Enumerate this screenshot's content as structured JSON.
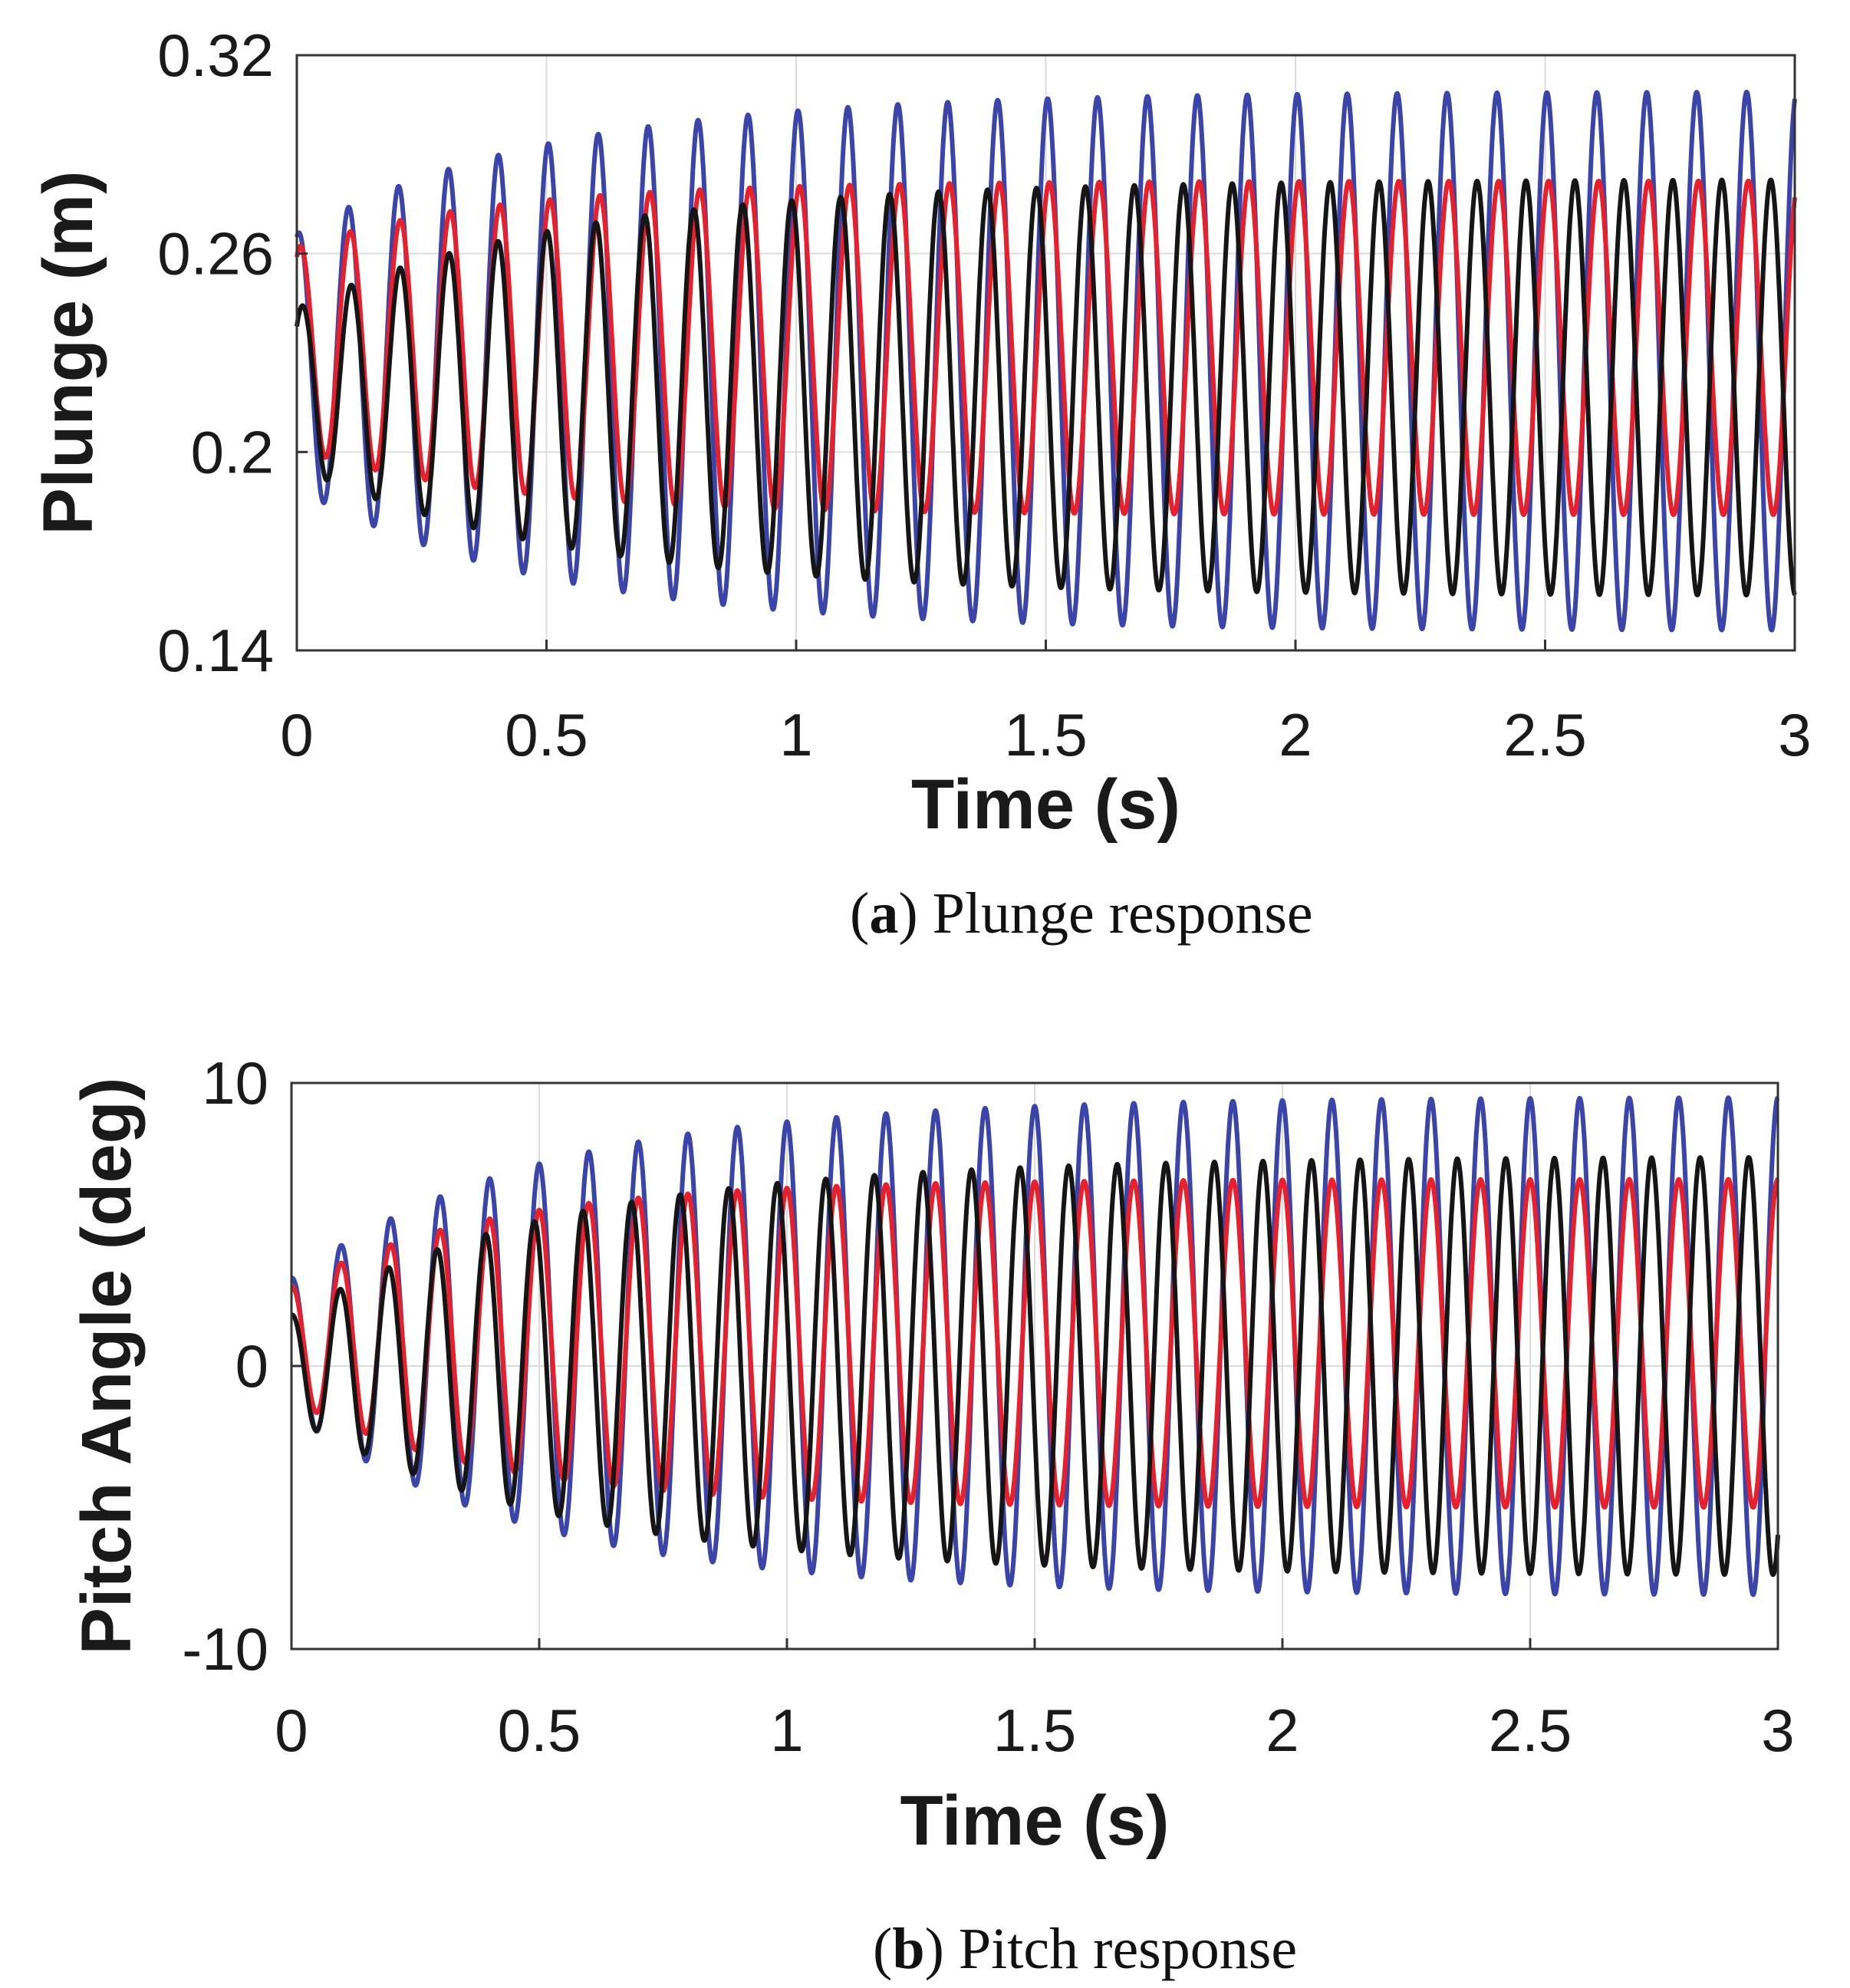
{
  "charts": [
    {
      "type": "line",
      "ylabel": "Plunge (m)",
      "xlabel": "Time (s)",
      "xlim": [
        0,
        3
      ],
      "ylim": [
        0.14,
        0.32
      ],
      "xticks": [
        "0",
        "0.5",
        "1",
        "1.5",
        "2",
        "2.5",
        "3"
      ],
      "yticks": [
        "0.14",
        "0.2",
        "0.26",
        "0.32"
      ],
      "grid": true,
      "caption": {
        "letter": "a",
        "text": "Plunge response"
      },
      "series": [
        {
          "name": "blue",
          "color": "#3b44a8",
          "x_start": 0,
          "x_end": 3,
          "freq_hz": 10.0,
          "mean": 0.2275,
          "amp_start": 0.0385,
          "amp_final": 0.0815,
          "tau": 0.5,
          "start_value": 0.265
        },
        {
          "name": "red",
          "color": "#e8202c",
          "x_start": 0,
          "x_end": 3,
          "freq_hz": 10.0,
          "mean": 0.2315,
          "amp_start": 0.0305,
          "amp_final": 0.0505,
          "tau": 0.4,
          "start_value": 0.259
        },
        {
          "name": "black",
          "color": "#151515",
          "x_start": 0,
          "x_end": 3,
          "freq_hz": 10.2,
          "mean": 0.2195,
          "amp_start": 0.024,
          "amp_final": 0.063,
          "tau": 0.55,
          "start_value": 0.238
        }
      ]
    },
    {
      "type": "line",
      "ylabel": "Pitch Angle (deg)",
      "xlabel": "Time (s)",
      "xlim": [
        0,
        3
      ],
      "ylim": [
        -10,
        10
      ],
      "xticks": [
        "0",
        "0.5",
        "1",
        "1.5",
        "2",
        "2.5",
        "3"
      ],
      "yticks": [
        "-10",
        "0",
        "10"
      ],
      "grid": true,
      "caption": {
        "letter": "b",
        "text": "Pitch response"
      },
      "series": [
        {
          "name": "blue",
          "color": "#3b44a8",
          "x_start": 0,
          "x_end": 3,
          "freq_hz": 10.0,
          "mean": 0.7,
          "amp_start": 2.4,
          "amp_final": 8.8,
          "tau": 0.5,
          "start_value": 3.6
        },
        {
          "name": "red",
          "color": "#e8202c",
          "x_start": 0,
          "x_end": 3,
          "freq_hz": 10.0,
          "mean": 0.8,
          "amp_start": 2.0,
          "amp_final": 5.8,
          "tau": 0.4,
          "start_value": 3.3
        },
        {
          "name": "black",
          "color": "#151515",
          "x_start": 0,
          "x_end": 3,
          "freq_hz": 10.2,
          "mean": 0.0,
          "amp_start": 1.8,
          "amp_final": 7.4,
          "tau": 0.55,
          "start_value": 2.5
        }
      ]
    }
  ]
}
